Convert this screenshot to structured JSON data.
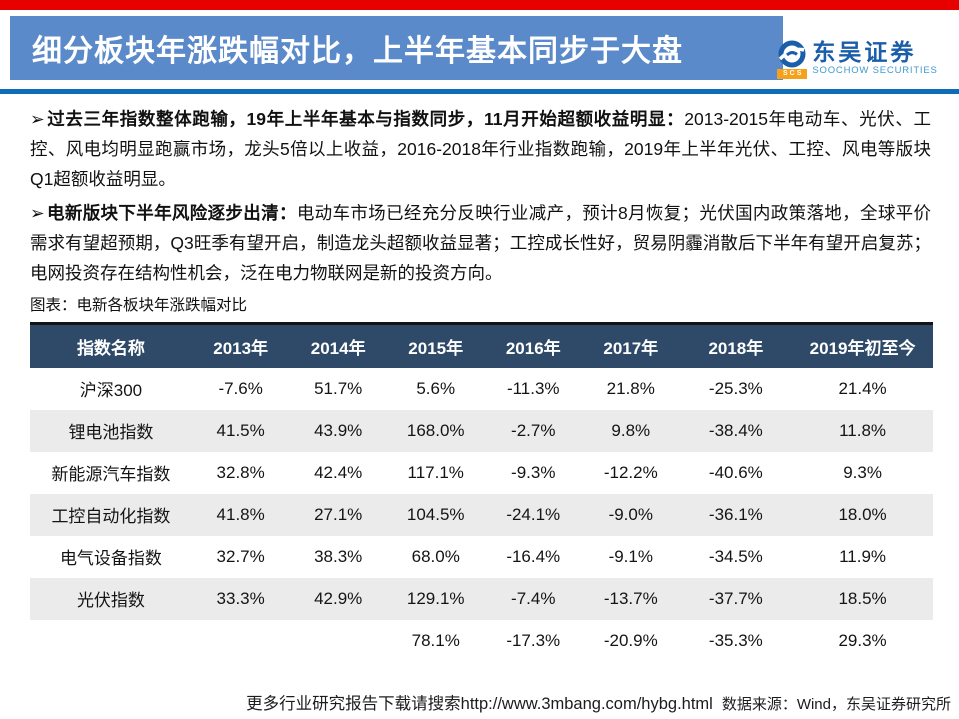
{
  "header": {
    "title": "细分板块年涨跌幅对比，上半年基本同步于大盘",
    "logo": {
      "cn": "东吴证券",
      "en": "SOOCHOW SECURITIES",
      "badge": "SCS"
    }
  },
  "bullets": [
    {
      "arrow": "➢",
      "bold": "过去三年指数整体跑输，19年上半年基本与指数同步，11月开始超额收益明显：",
      "rest": "2013-2015年电动车、光伏、工控、风电均明显跑赢市场，龙头5倍以上收益，2016-2018年行业指数跑输，2019年上半年光伏、工控、风电等版块Q1超额收益明显。"
    },
    {
      "arrow": "➢",
      "bold": "电新版块下半年风险逐步出清：",
      "rest": "电动车市场已经充分反映行业减产，预计8月恢复；光伏国内政策落地，全球平价需求有望超预期，Q3旺季有望开启，制造龙头超额收益显著；工控成长性好，贸易阴霾消散后下半年有望开启复苏；电网投资存在结构性机会，泛在电力物联网是新的投资方向。"
    }
  ],
  "chart_data": {
    "type": "table",
    "title": "图表：电新各板块年涨跌幅对比",
    "columns": [
      "指数名称",
      "2013年",
      "2014年",
      "2015年",
      "2016年",
      "2017年",
      "2018年",
      "2019年初至今"
    ],
    "rows": [
      [
        "沪深300",
        "-7.6%",
        "51.7%",
        "5.6%",
        "-11.3%",
        "21.8%",
        "-25.3%",
        "21.4%"
      ],
      [
        "锂电池指数",
        "41.5%",
        "43.9%",
        "168.0%",
        "-2.7%",
        "9.8%",
        "-38.4%",
        "11.8%"
      ],
      [
        "新能源汽车指数",
        "32.8%",
        "42.4%",
        "117.1%",
        "-9.3%",
        "-12.2%",
        "-40.6%",
        "9.3%"
      ],
      [
        "工控自动化指数",
        "41.8%",
        "27.1%",
        "104.5%",
        "-24.1%",
        "-9.0%",
        "-36.1%",
        "18.0%"
      ],
      [
        "电气设备指数",
        "32.7%",
        "38.3%",
        "68.0%",
        "-16.4%",
        "-9.1%",
        "-34.5%",
        "11.9%"
      ],
      [
        "光伏指数",
        "33.3%",
        "42.9%",
        "129.1%",
        "-7.4%",
        "-13.7%",
        "-37.7%",
        "18.5%"
      ],
      [
        "",
        "",
        "",
        "78.1%",
        "-17.3%",
        "-20.9%",
        "-35.3%",
        "29.3%"
      ]
    ]
  },
  "footer": {
    "watermark": "更多行业研究报告下载请搜索http://www.3mbang.com/hybg.html",
    "source": "数据来源：Wind，东吴证券研究所"
  },
  "colors": {
    "top_bar_red": "#e60000",
    "banner_blue": "#5a8ac9",
    "rule_blue": "#0d6db8",
    "table_header_navy": "#2e4a68",
    "row_alt_gray": "#ebebeb",
    "logo_blue": "#1a5da8",
    "logo_orange": "#f5a11c",
    "logo_en_blue": "#3d9ad1"
  }
}
